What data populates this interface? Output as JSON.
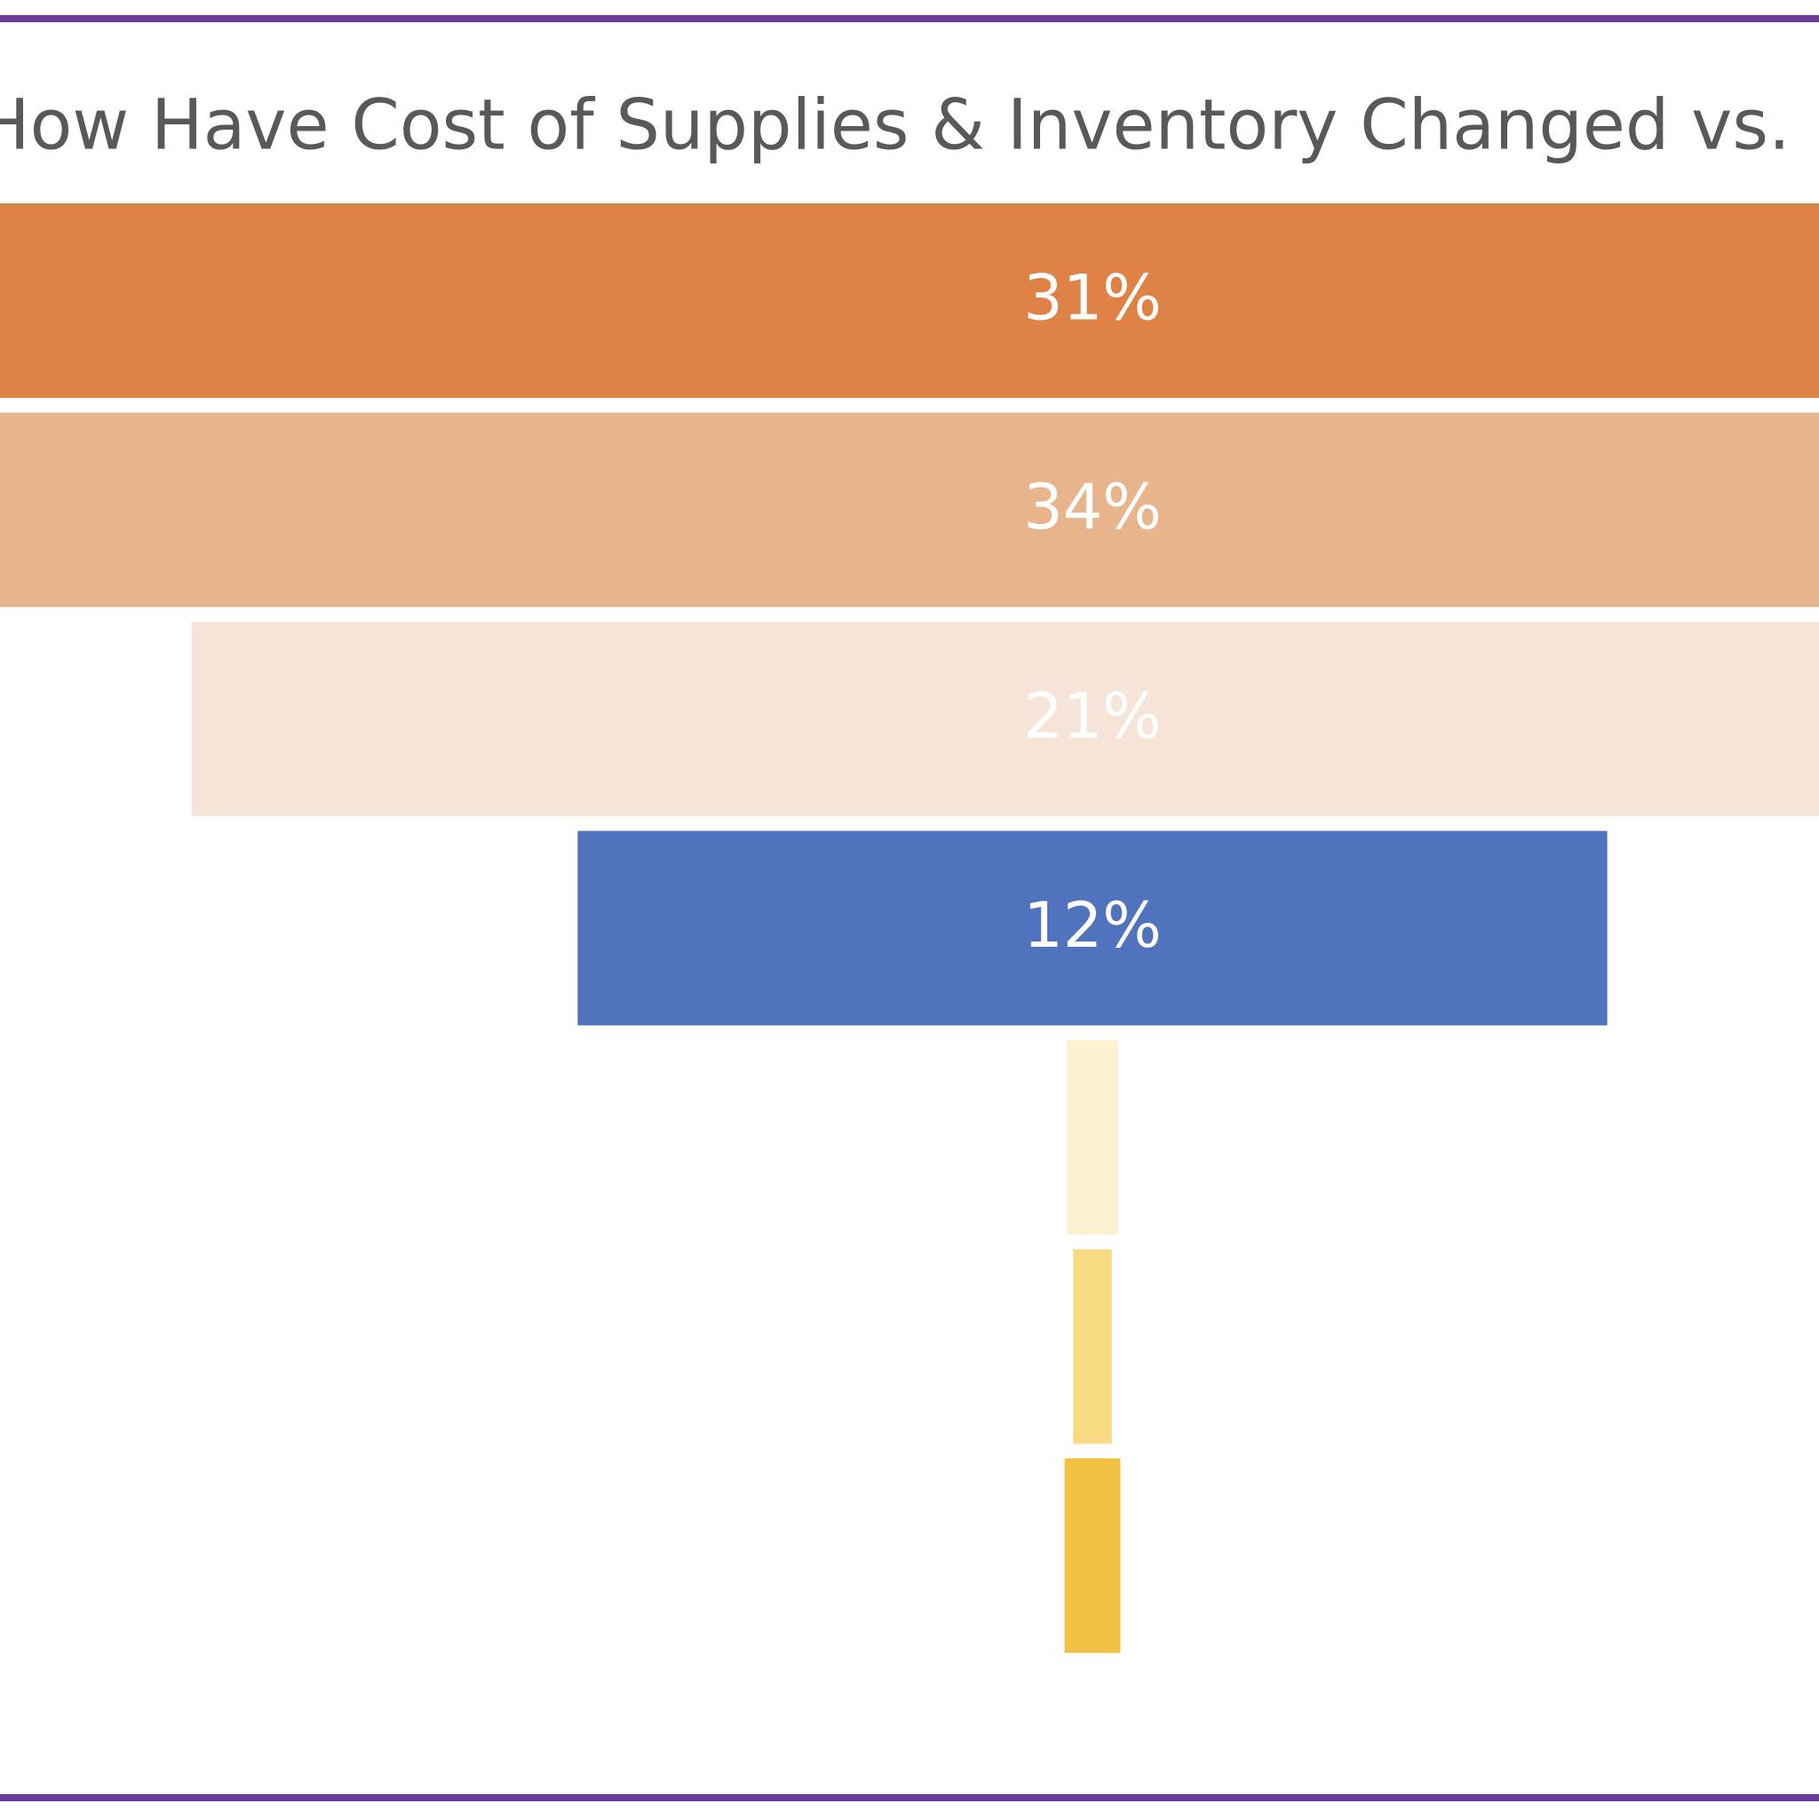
{
  "chart_data": {
    "type": "funnel",
    "title": "How Have Cost of Supplies & Inventory Changed vs. Pre-COVID?",
    "values": [
      31,
      34,
      21,
      12,
      0.6,
      0.45,
      0.65
    ],
    "value_labels": [
      "31%",
      "34%",
      "21%",
      "12%",
      null,
      null,
      null
    ],
    "colors": [
      "#de8345",
      "#e8b48b",
      "#f5e4d7",
      "#5172bc",
      "#fcf1d1",
      "#f7da82",
      "#f2c144"
    ],
    "border_color": "#6b3a9b"
  }
}
